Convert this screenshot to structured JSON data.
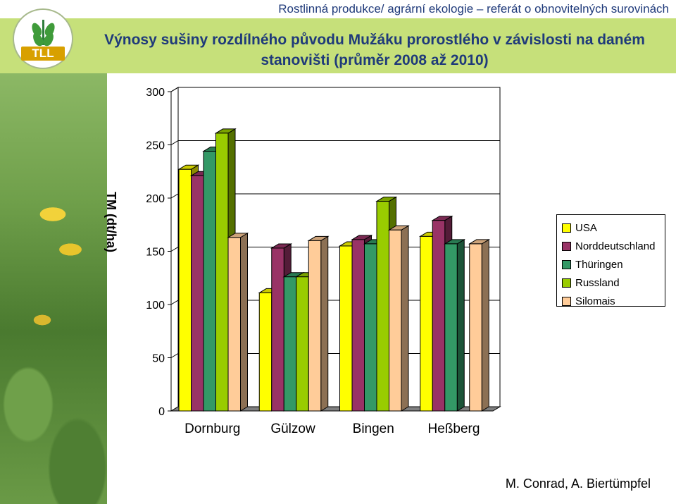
{
  "header": {
    "subtitle": "Rostlinná produkce/ agrární ekologie – referát o obnovitelných  surovinách",
    "title": "Výnosy sušiny rozdílného původu Mužáku prorostlého v závislosti na daném stanovišti (průměr 2008 až 2010)"
  },
  "logo": {
    "text": "TLL"
  },
  "footer": {
    "authors": "M. Conrad, A. Biertümpfel"
  },
  "colors": {
    "title_band": "#c6e07a",
    "title_text": "#1f3a7a"
  },
  "chart_data": {
    "type": "bar",
    "title": "",
    "xlabel": "",
    "ylabel": "TM (dt/ha)",
    "ylim": [
      0,
      300
    ],
    "yticks": [
      0,
      50,
      100,
      150,
      200,
      250,
      300
    ],
    "ytick_labels": [
      "0",
      "50",
      "100",
      "150",
      "200",
      "250",
      "300"
    ],
    "grid": "horizontal",
    "legend_position": "right",
    "categories": [
      "Dornburg",
      "Gülzow",
      "Bingen",
      "Heßberg"
    ],
    "series": [
      {
        "name": "USA",
        "color": "#ffff00",
        "values": [
          227,
          111,
          155,
          164
        ]
      },
      {
        "name": "Norddeutschland",
        "color": "#993366",
        "values": [
          221,
          153,
          161,
          179
        ]
      },
      {
        "name": "Thüringen",
        "color": "#339966",
        "values": [
          244,
          126,
          157,
          157
        ]
      },
      {
        "name": "Russland",
        "color": "#99cc00",
        "values": [
          261,
          126,
          197,
          null
        ]
      },
      {
        "name": "Silomais",
        "color": "#ffcc99",
        "values": [
          163,
          160,
          170,
          157
        ]
      }
    ]
  }
}
